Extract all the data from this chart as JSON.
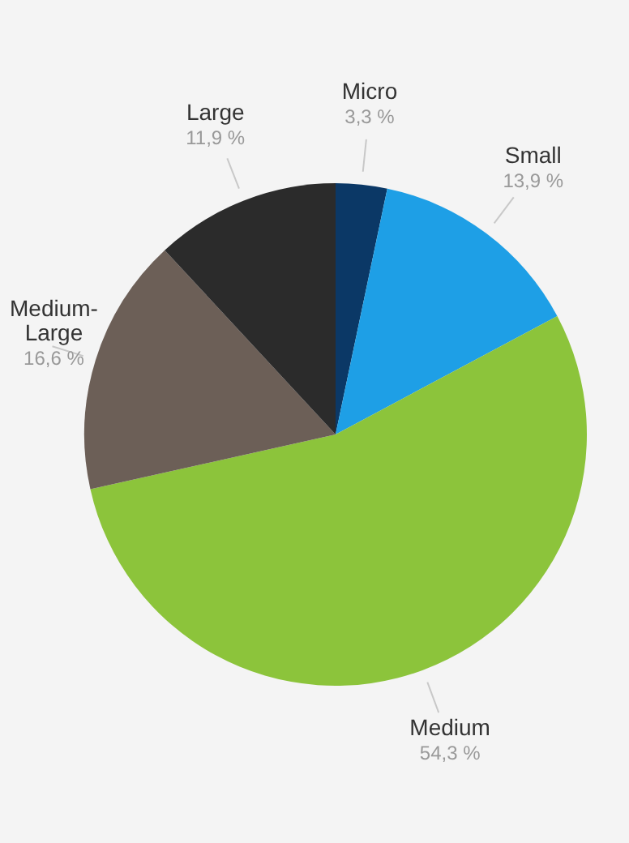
{
  "chart_data": {
    "type": "pie",
    "categories": [
      "Micro",
      "Small",
      "Medium",
      "Medium-Large",
      "Large"
    ],
    "values": [
      3.3,
      13.9,
      54.3,
      16.6,
      11.9
    ],
    "colors": [
      "#0b3866",
      "#1e9fe6",
      "#8cc43b",
      "#6c5f57",
      "#2b2b2b"
    ],
    "value_labels": [
      "3,3 %",
      "13,9 %",
      "54,3 %",
      "16,6 %",
      "11,9 %"
    ],
    "legend": false
  }
}
